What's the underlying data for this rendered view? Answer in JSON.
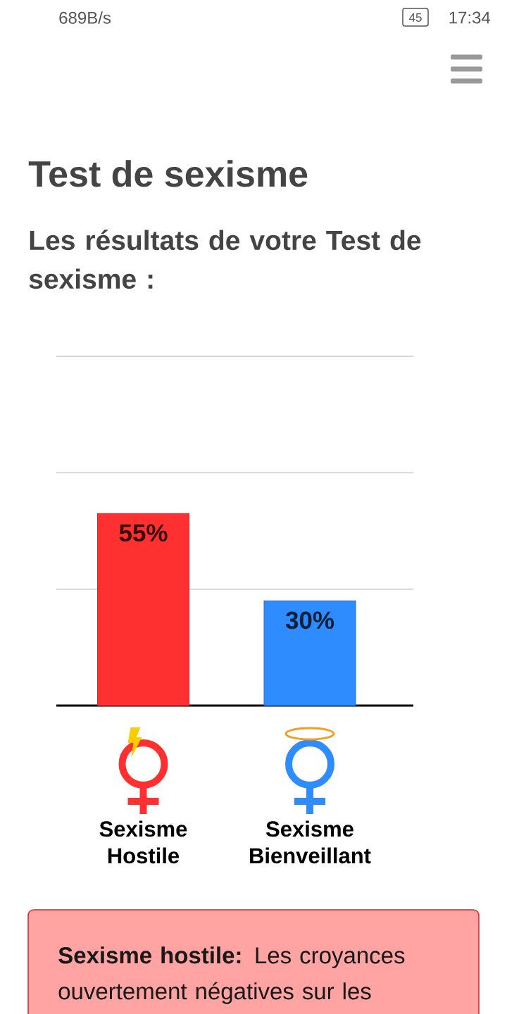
{
  "chart_data": {
    "type": "bar",
    "title": "Test de sexisme",
    "subtitle": "Les résultats de votre Test de sexisme :",
    "categories": [
      "Sexisme Hostile",
      "Sexisme Bienveillant"
    ],
    "values": [
      55,
      30
    ],
    "colors": [
      "#ff3030",
      "#2f8cff"
    ],
    "value_labels": [
      "55%",
      "30%"
    ],
    "ylim": [
      0,
      100
    ],
    "yticks": [
      {
        "value": 0,
        "label": null
      },
      {
        "value": 33.3,
        "label": null
      },
      {
        "value": 66.7,
        "label": null
      },
      {
        "value": 100,
        "label": null
      }
    ],
    "grid": "y",
    "tick_labels": "x",
    "annotations": [
      "689B/s",
      "45",
      "17:34",
      "**Sexisme hostile:** Les croyances ouvertement négatives sur les"
    ]
  }
}
